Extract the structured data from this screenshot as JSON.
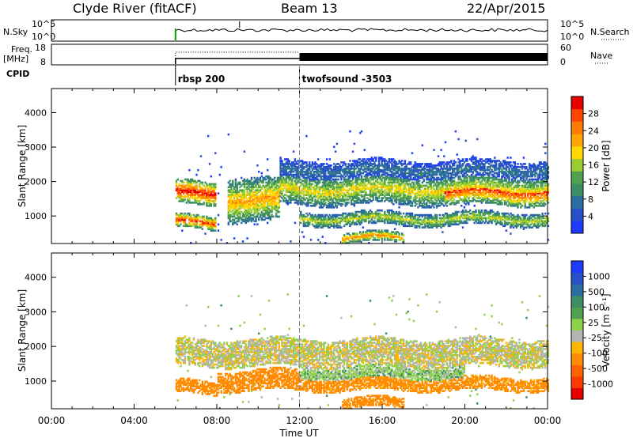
{
  "header": {
    "title": "Clyde River (fitACF)",
    "beam": "Beam 13",
    "date": "22/Apr/2015"
  },
  "top_panels": {
    "nsky_label": "N.Sky",
    "nsky_ticks": [
      "10^5",
      "10^0"
    ],
    "nsearch_label": "N.Search",
    "nsearch_ticks": [
      "10^5",
      "10^0"
    ],
    "freq_label_1": "Freq.",
    "freq_label_2": "[MHz]",
    "freq_ticks": [
      "18",
      "8"
    ],
    "nave_label": "Nave",
    "nave_ticks": [
      "60",
      "0"
    ],
    "cpid_label": "CPID",
    "cpid_entries": [
      {
        "time_h": 6.0,
        "label": "rbsp 200"
      },
      {
        "time_h": 12.0,
        "label": "twofsound -3503"
      }
    ]
  },
  "chart_data": [
    {
      "type": "heatmap",
      "name": "power",
      "ylabel": "Slant Range [km]",
      "xlim": [
        0,
        24
      ],
      "ylim": [
        200,
        4700
      ],
      "yticks": [
        1000,
        2000,
        3000,
        4000
      ],
      "colorbar": {
        "label": "Power [dB]",
        "ticks": [
          "4",
          "8",
          "12",
          "16",
          "20",
          "24",
          "28"
        ],
        "colors": [
          "#1e3cff",
          "#2850c8",
          "#2d6ea0",
          "#3c8c64",
          "#50a050",
          "#9acd32",
          "#ffd700",
          "#ffa500",
          "#ff7a00",
          "#ff4500",
          "#e60000"
        ]
      },
      "bands": [
        {
          "t0": 6.0,
          "t1": 7.9,
          "r0": 1300,
          "r1": 2000,
          "level": 0.95
        },
        {
          "t0": 6.0,
          "t1": 7.9,
          "r0": 600,
          "r1": 1000,
          "level": 0.9
        },
        {
          "t0": 8.5,
          "t1": 11.0,
          "r0": 800,
          "r1": 2100,
          "level": 0.7
        },
        {
          "t0": 11.0,
          "t1": 24.0,
          "r0": 1300,
          "r1": 2200,
          "level": 0.6
        },
        {
          "t0": 19.0,
          "t1": 24.0,
          "r0": 1300,
          "r1": 2100,
          "level": 0.9
        },
        {
          "t0": 12.0,
          "t1": 24.0,
          "r0": 700,
          "r1": 1100,
          "level": 0.55
        },
        {
          "t0": 14.0,
          "t1": 17.0,
          "r0": 200,
          "r1": 500,
          "level": 0.75
        },
        {
          "t0": 11.0,
          "t1": 24.0,
          "r0": 2000,
          "r1": 2600,
          "level": 0.25
        }
      ]
    },
    {
      "type": "heatmap",
      "name": "velocity",
      "ylabel": "Slant Range [km]",
      "xlabel": "Time UT",
      "xlim": [
        0,
        24
      ],
      "ylim": [
        200,
        4700
      ],
      "xticks": [
        "00:00",
        "04:00",
        "08:00",
        "12:00",
        "16:00",
        "20:00",
        "00:00"
      ],
      "yticks": [
        1000,
        2000,
        3000,
        4000
      ],
      "colorbar": {
        "label": "Velocity [m s⁻¹]",
        "ticks": [
          "1000",
          "500",
          "100",
          "25",
          "-25",
          "-100",
          "-500",
          "-1000"
        ],
        "colors": [
          "#1e3cff",
          "#2850c8",
          "#2d6ea0",
          "#3c8c64",
          "#50a050",
          "#8cd24a",
          "#b4b4b4",
          "#ffb400",
          "#ff8c00",
          "#ff6400",
          "#ff3c00",
          "#e60000"
        ]
      },
      "bands": [
        {
          "t0": 6.0,
          "t1": 24.0,
          "r0": 1400,
          "r1": 2200,
          "vel": 0
        },
        {
          "t0": 6.0,
          "t1": 8.0,
          "r0": 600,
          "r1": 1000,
          "vel": -300
        },
        {
          "t0": 8.0,
          "t1": 12.0,
          "r0": 700,
          "r1": 1300,
          "vel": -200
        },
        {
          "t0": 12.0,
          "t1": 24.0,
          "r0": 700,
          "r1": 1100,
          "vel": -150
        },
        {
          "t0": 14.0,
          "t1": 17.0,
          "r0": 200,
          "r1": 500,
          "vel": -250
        },
        {
          "t0": 12.0,
          "t1": 20.0,
          "r0": 1000,
          "r1": 1400,
          "vel": 60
        }
      ]
    }
  ]
}
